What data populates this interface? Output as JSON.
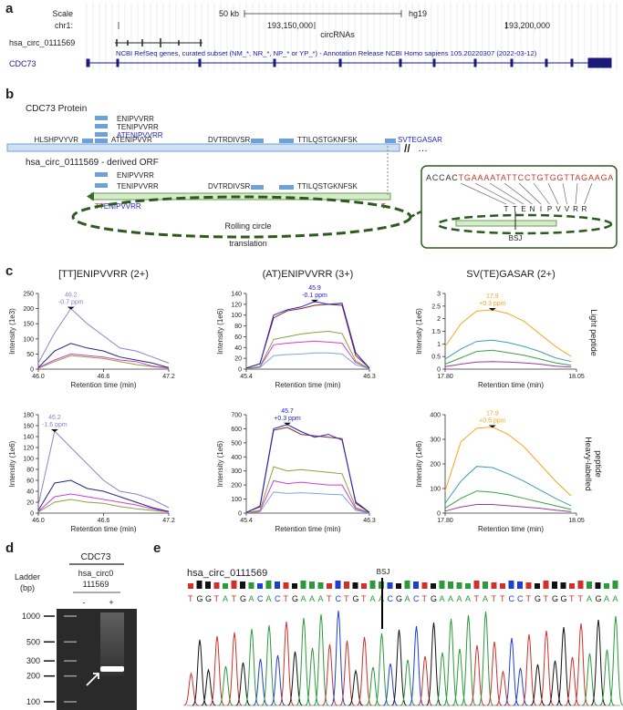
{
  "panel_labels": [
    "a",
    "b",
    "c",
    "d",
    "e"
  ],
  "browser": {
    "scale_label": "Scale",
    "scale_value": "50 kb",
    "assembly": "hg19",
    "chr_label": "chr1:",
    "coords": [
      "193,150,000",
      "193,200,000"
    ],
    "track": "circRNAs",
    "circ_name": "hsa_circ_0111569",
    "refseq": "NCBI RefSeq genes, curated subset (NM_*, NR_*, NP_* or YP_*) - Annotation Release NCBI Homo sapiens 105.20220307 (2022-03-12)",
    "gene": "CDC73"
  },
  "protein": {
    "title": "CDC73 Protein",
    "stack": [
      "ENIPVVRR",
      "TENIPVVRR",
      "ATENIPVVRR"
    ],
    "row": [
      "HLSHPVYVR",
      "ATENIPVVR",
      "DVTRDIVSR",
      "TTILQSTGKNFSK",
      "SVTEGASAR"
    ],
    "break": "//",
    "more": "…"
  },
  "orf": {
    "title": "hsa_circ_0111569 - derived ORF",
    "stack": [
      "ENIPVVRR",
      "TENIPVVRR"
    ],
    "row": [
      "DVTRDIVSR",
      "TTILQSTGKNFSK"
    ],
    "junction_red": "TT",
    "junction_blue": "ENIPVVRR",
    "end": "T",
    "caption": [
      "Rolling circle",
      "translation"
    ]
  },
  "inset": {
    "sequence": "ACCACTGAAAATATTCCTGTGGTTAGAAGA",
    "residues": [
      "T",
      "T",
      "E",
      "N",
      "I",
      "P",
      "V",
      "V",
      "R",
      "R"
    ],
    "label": "BSJ"
  },
  "row_labels": {
    "light": "Light peptide",
    "heavy": [
      "Heavy-labelled",
      "peptide"
    ]
  },
  "chart_data": [
    {
      "type": "line",
      "title": "[TT]ENIPVVRR (2+)",
      "x_label": "Retention time (min)",
      "y_label": "Intensity (1e3)",
      "x": [
        46.0,
        46.15,
        46.3,
        46.45,
        46.6,
        46.75,
        46.9,
        47.05,
        47.2
      ],
      "xlim": [
        46.0,
        47.2
      ],
      "xticks": [
        {
          "value": 46,
          "label": "46.0"
        },
        46.6,
        47.2
      ],
      "ylim": [
        0,
        250
      ],
      "yticks": [
        0,
        50,
        100,
        150,
        200,
        250
      ],
      "peak": {
        "rt": "46.2",
        "ppm": "-0.7 ppm",
        "color": "#8a86c8"
      },
      "series": [
        {
          "color": "#8a86c8",
          "values": [
            20,
            120,
            200,
            150,
            110,
            70,
            60,
            40,
            20
          ]
        },
        {
          "color": "#1f2a7a",
          "values": [
            5,
            60,
            85,
            70,
            60,
            40,
            30,
            20,
            5
          ]
        },
        {
          "color": "#d63cd6",
          "values": [
            5,
            30,
            50,
            45,
            40,
            30,
            25,
            10,
            5
          ]
        },
        {
          "color": "#8ea13c",
          "values": [
            3,
            25,
            45,
            40,
            35,
            25,
            15,
            8,
            3
          ]
        }
      ]
    },
    {
      "type": "line",
      "title": "(AT)ENIPVVRR (3+)",
      "x_label": "Retention time (min)",
      "y_label": "Intensity (1e6)",
      "x": [
        45.4,
        45.5,
        45.6,
        45.7,
        45.8,
        45.9,
        46.0,
        46.1,
        46.2,
        46.3
      ],
      "xlim": [
        45.4,
        46.3
      ],
      "xticks": [
        45.4,
        46.3
      ],
      "ylim": [
        0,
        140
      ],
      "yticks": [
        0,
        20,
        40,
        60,
        80,
        100,
        120,
        140
      ],
      "peak": {
        "rt": "45.9",
        "ppm": "-0.1 ppm",
        "color": "#2222cc"
      },
      "series": [
        {
          "color": "#2222cc",
          "values": [
            2,
            10,
            100,
            110,
            115,
            125,
            120,
            122,
            30,
            2
          ]
        },
        {
          "color": "#8b2a1a",
          "values": [
            2,
            10,
            95,
            108,
            112,
            118,
            120,
            118,
            25,
            2
          ]
        },
        {
          "color": "#8ea13c",
          "values": [
            1,
            5,
            55,
            60,
            65,
            68,
            70,
            66,
            15,
            1
          ]
        },
        {
          "color": "#d63cd6",
          "values": [
            1,
            4,
            45,
            48,
            50,
            52,
            50,
            48,
            12,
            1
          ]
        },
        {
          "color": "#7fa6e0",
          "values": [
            1,
            3,
            25,
            27,
            28,
            30,
            30,
            28,
            8,
            1
          ]
        }
      ]
    },
    {
      "type": "line",
      "title": "SV(TE)GASAR (2+)",
      "x_label": "Retention time (min)",
      "y_label": "Intensity (1e6)",
      "x": [
        17.8,
        17.83,
        17.86,
        17.89,
        17.92,
        17.95,
        17.98,
        18.01,
        18.04
      ],
      "xlim": [
        17.8,
        18.05
      ],
      "xticks": [
        {
          "value": 17.8,
          "label": "17.80"
        },
        18.05
      ],
      "ylim": [
        0,
        3
      ],
      "yticks": [
        0,
        0.5,
        1,
        1.5,
        2,
        2.5,
        3
      ],
      "peak": {
        "rt": "17.9",
        "ppm": "+0.3 ppm",
        "color": "#f5a623"
      },
      "series": [
        {
          "color": "#f5a623",
          "values": [
            0.9,
            1.8,
            2.3,
            2.35,
            2.2,
            1.9,
            1.4,
            0.9,
            0.5
          ]
        },
        {
          "color": "#3aa0b8",
          "values": [
            0.4,
            0.8,
            1.1,
            1.15,
            1.05,
            0.9,
            0.7,
            0.45,
            0.3
          ]
        },
        {
          "color": "#3aa04a",
          "values": [
            0.2,
            0.45,
            0.7,
            0.75,
            0.65,
            0.55,
            0.4,
            0.25,
            0.15
          ]
        },
        {
          "color": "#9a3aa0",
          "values": [
            0.1,
            0.2,
            0.28,
            0.3,
            0.28,
            0.25,
            0.2,
            0.12,
            0.08
          ]
        }
      ]
    },
    {
      "type": "line",
      "x_label": "Retention time (min)",
      "y_label": "Intensity (1e6)",
      "x": [
        46.0,
        46.15,
        46.3,
        46.45,
        46.6,
        46.75,
        46.9,
        47.05,
        47.2
      ],
      "xlim": [
        46.0,
        47.2
      ],
      "xticks": [
        {
          "value": 46,
          "label": "46.0"
        },
        46.6,
        47.2
      ],
      "ylim": [
        0,
        180
      ],
      "yticks": [
        0,
        20,
        40,
        60,
        80,
        100,
        120,
        140,
        160,
        180
      ],
      "peak": {
        "rt": "46.2",
        "ppm": "-1.6 ppm",
        "color": "#8a86c8"
      },
      "series": [
        {
          "color": "#8a86c8",
          "values": [
            15,
            150,
            120,
            90,
            60,
            40,
            35,
            25,
            10
          ]
        },
        {
          "color": "#1f2a7a",
          "values": [
            5,
            55,
            60,
            45,
            40,
            30,
            20,
            10,
            3
          ]
        },
        {
          "color": "#d63cd6",
          "values": [
            3,
            30,
            35,
            30,
            25,
            20,
            15,
            8,
            2
          ]
        },
        {
          "color": "#8ea13c",
          "values": [
            2,
            20,
            25,
            20,
            18,
            12,
            8,
            5,
            2
          ]
        }
      ]
    },
    {
      "type": "line",
      "x_label": "Retention time (min)",
      "y_label": "Intensity (1e6)",
      "x": [
        45.4,
        45.5,
        45.6,
        45.7,
        45.8,
        45.9,
        46.0,
        46.1,
        46.2,
        46.3
      ],
      "xlim": [
        45.4,
        46.3
      ],
      "xticks": [
        45.4,
        46.3
      ],
      "ylim": [
        0,
        700
      ],
      "yticks": [
        0,
        100,
        200,
        300,
        400,
        500,
        600,
        700
      ],
      "peak": {
        "rt": "45.7",
        "ppm": "+0.3 ppm",
        "color": "#2222cc"
      },
      "series": [
        {
          "color": "#2222cc",
          "values": [
            5,
            50,
            600,
            630,
            580,
            540,
            560,
            520,
            80,
            5
          ]
        },
        {
          "color": "#8b2a1a",
          "values": [
            5,
            45,
            590,
            610,
            560,
            550,
            540,
            530,
            70,
            5
          ]
        },
        {
          "color": "#8ea13c",
          "values": [
            3,
            20,
            330,
            300,
            310,
            300,
            290,
            280,
            40,
            3
          ]
        },
        {
          "color": "#d63cd6",
          "values": [
            2,
            15,
            230,
            210,
            220,
            210,
            200,
            200,
            30,
            2
          ]
        },
        {
          "color": "#7fa6e0",
          "values": [
            1,
            10,
            150,
            140,
            145,
            140,
            135,
            130,
            20,
            1
          ]
        }
      ]
    },
    {
      "type": "line",
      "x_label": "Retention time (min)",
      "y_label": "Intensity (1e6)",
      "x": [
        17.8,
        17.83,
        17.86,
        17.89,
        17.92,
        17.95,
        17.98,
        18.01,
        18.04
      ],
      "xlim": [
        17.8,
        18.05
      ],
      "xticks": [
        {
          "value": 17.8,
          "label": "17.80"
        },
        18.05
      ],
      "ylim": [
        0,
        400
      ],
      "yticks": [
        0,
        100,
        200,
        300,
        400
      ],
      "peak": {
        "rt": "17.9",
        "ppm": "+0.5 ppm",
        "color": "#f5a623"
      },
      "series": [
        {
          "color": "#f5a623",
          "values": [
            90,
            290,
            345,
            350,
            320,
            270,
            200,
            130,
            70
          ]
        },
        {
          "color": "#3aa0b8",
          "values": [
            40,
            130,
            190,
            185,
            160,
            130,
            95,
            60,
            30
          ]
        },
        {
          "color": "#3aa04a",
          "values": [
            20,
            60,
            90,
            85,
            75,
            60,
            45,
            30,
            15
          ]
        },
        {
          "color": "#9a3aa0",
          "values": [
            8,
            25,
            35,
            35,
            30,
            25,
            20,
            12,
            6
          ]
        }
      ]
    }
  ],
  "gel": {
    "title": "CDC73",
    "sample": [
      "hsa_circ0",
      "111569"
    ],
    "ladder_title": [
      "Ladder",
      "(bp)"
    ],
    "lanes": [
      "-",
      "+"
    ],
    "ladder": [
      1000,
      500,
      300,
      200,
      100
    ]
  },
  "sanger": {
    "title": "hsa_circ_0111569",
    "junction": "BSJ",
    "sequence": "TGGTATGACACTGAAATCTGTAACGACTGAAAATATTCCTGTGGTTAGAA"
  }
}
